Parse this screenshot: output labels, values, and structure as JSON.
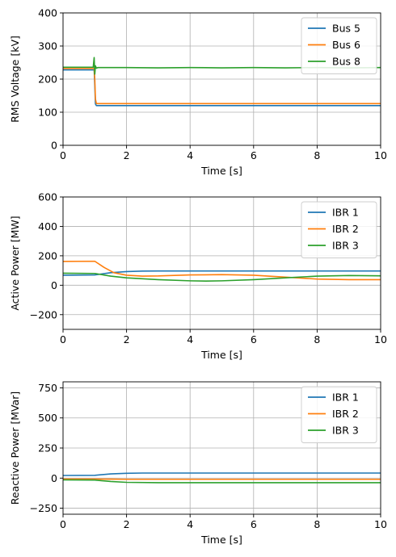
{
  "chart_data": [
    {
      "type": "line",
      "xlabel": "Time [s]",
      "ylabel": "RMS Voltage [kV]",
      "xlim": [
        0,
        10
      ],
      "ylim": [
        0,
        400
      ],
      "xticks": [
        0,
        2,
        4,
        6,
        8,
        10
      ],
      "yticks": [
        0,
        100,
        200,
        300,
        400
      ],
      "grid": true,
      "legend_position": "top-right",
      "series": [
        {
          "name": "Bus 5",
          "color": "#1f77b4",
          "x": [
            0,
            0.98,
            1.0,
            1.02,
            1.05,
            10
          ],
          "y": [
            228,
            228,
            180,
            125,
            120,
            120
          ]
        },
        {
          "name": "Bus 6",
          "color": "#ff7f0e",
          "x": [
            0,
            0.98,
            1.0,
            1.02,
            1.05,
            10
          ],
          "y": [
            232,
            232,
            200,
            140,
            126,
            126
          ]
        },
        {
          "name": "Bus 8",
          "color": "#2ca02c",
          "x": [
            0,
            0.95,
            0.98,
            1.0,
            1.02,
            1.05,
            1.1,
            2,
            3,
            4,
            5,
            6,
            7,
            8,
            9,
            10
          ],
          "y": [
            236,
            236,
            265,
            215,
            240,
            233,
            235,
            235,
            234,
            235,
            234,
            235,
            234,
            235,
            234,
            235
          ]
        }
      ]
    },
    {
      "type": "line",
      "xlabel": "Time [s]",
      "ylabel": "Active Power [MW]",
      "xlim": [
        0,
        10
      ],
      "ylim": [
        -300,
        600
      ],
      "xticks": [
        0,
        2,
        4,
        6,
        8,
        10
      ],
      "yticks": [
        -200,
        0,
        200,
        400,
        600
      ],
      "grid": true,
      "legend_position": "top-right",
      "series": [
        {
          "name": "IBR 1",
          "color": "#1f77b4",
          "x": [
            0,
            1,
            1.5,
            2,
            2.5,
            3,
            4,
            5,
            6,
            7,
            8,
            9,
            10
          ],
          "y": [
            68,
            70,
            85,
            93,
            96,
            97,
            97,
            97,
            97,
            97,
            97,
            97,
            97
          ]
        },
        {
          "name": "IBR 2",
          "color": "#ff7f0e",
          "x": [
            0,
            1,
            1.3,
            1.6,
            2,
            2.5,
            3,
            4,
            5,
            6,
            7,
            8,
            9,
            10
          ],
          "y": [
            162,
            163,
            120,
            85,
            68,
            62,
            63,
            70,
            72,
            68,
            55,
            42,
            38,
            38
          ]
        },
        {
          "name": "IBR 3",
          "color": "#2ca02c",
          "x": [
            0,
            1,
            1.5,
            2,
            3,
            4,
            4.5,
            5,
            6,
            7,
            8,
            9,
            10
          ],
          "y": [
            82,
            80,
            62,
            50,
            38,
            30,
            28,
            30,
            38,
            50,
            62,
            66,
            64
          ]
        }
      ]
    },
    {
      "type": "line",
      "xlabel": "Time [s]",
      "ylabel": "Reactive Power [MVar]",
      "xlim": [
        0,
        10
      ],
      "ylim": [
        -300,
        800
      ],
      "xticks": [
        0,
        2,
        4,
        6,
        8,
        10
      ],
      "yticks": [
        -250,
        0,
        250,
        500,
        750
      ],
      "grid": true,
      "legend_position": "top-right",
      "series": [
        {
          "name": "IBR 1",
          "color": "#1f77b4",
          "x": [
            0,
            1,
            1.5,
            2,
            2.5,
            3,
            5,
            10
          ],
          "y": [
            22,
            23,
            35,
            40,
            42,
            42,
            42,
            42
          ]
        },
        {
          "name": "IBR 2",
          "color": "#ff7f0e",
          "x": [
            0,
            1,
            1.5,
            2,
            10
          ],
          "y": [
            -8,
            -8,
            -9,
            -10,
            -10
          ]
        },
        {
          "name": "IBR 3",
          "color": "#2ca02c",
          "x": [
            0,
            1,
            1.5,
            2,
            3,
            5,
            10
          ],
          "y": [
            -15,
            -16,
            -28,
            -35,
            -38,
            -38,
            -38
          ]
        }
      ]
    }
  ]
}
